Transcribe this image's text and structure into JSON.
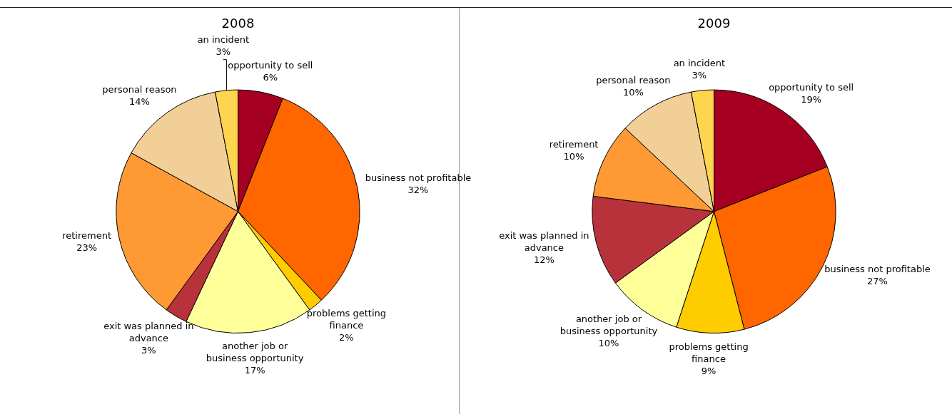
{
  "chart_data": [
    {
      "type": "pie",
      "title": "2008",
      "categories": [
        "opportunity to sell",
        "business not profitable",
        "problems getting finance",
        "another job or business opportunity",
        "exit was planned in advance",
        "retirement",
        "personal reason",
        "an incident"
      ],
      "values": [
        6,
        32,
        2,
        17,
        3,
        23,
        14,
        3
      ],
      "value_labels": [
        "6%",
        "32%",
        "2%",
        "17%",
        "3%",
        "23%",
        "14%",
        "3%"
      ],
      "colors": [
        "#a50021",
        "#ff6600",
        "#ffcc00",
        "#ffff99",
        "#b8323c",
        "#ff9933",
        "#f2cf96",
        "#ffd54f"
      ]
    },
    {
      "type": "pie",
      "title": "2009",
      "categories": [
        "opportunity to sell",
        "business not profitable",
        "problems getting finance",
        "another job or business opportunity",
        "exit was planned in advance",
        "retirement",
        "personal reason",
        "an incident"
      ],
      "values": [
        19,
        27,
        9,
        10,
        12,
        10,
        10,
        3
      ],
      "value_labels": [
        "19%",
        "27%",
        "9%",
        "10%",
        "12%",
        "10%",
        "10%",
        "3%"
      ],
      "colors": [
        "#a50021",
        "#ff6600",
        "#ffcc00",
        "#ffff99",
        "#b8323c",
        "#ff9933",
        "#f2cf96",
        "#ffd54f"
      ]
    }
  ]
}
